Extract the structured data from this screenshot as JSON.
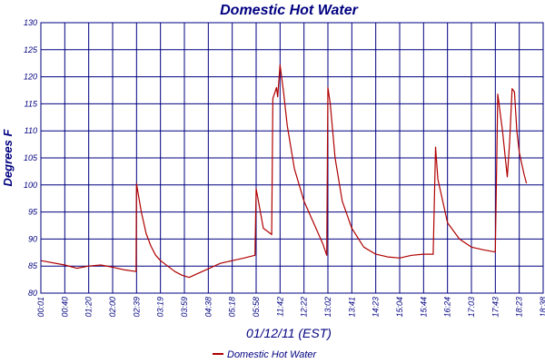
{
  "chart_data": {
    "type": "line",
    "title": "Domestic Hot Water",
    "xlabel": "01/12/11 (EST)",
    "ylabel": "Degrees F",
    "ylim": [
      80,
      130
    ],
    "yticks": [
      80,
      85,
      90,
      95,
      100,
      105,
      110,
      115,
      120,
      125,
      130
    ],
    "xticks": [
      "00:01",
      "00:40",
      "01:20",
      "02:00",
      "02:39",
      "03:19",
      "03:59",
      "04:38",
      "05:18",
      "05:58",
      "11:42",
      "12:22",
      "13:02",
      "13:41",
      "14:23",
      "15:04",
      "15:44",
      "16:24",
      "17:03",
      "17:43",
      "18:23",
      "18:38"
    ],
    "grid": true,
    "legend_position": "bottom",
    "series": [
      {
        "name": "Domestic Hot Water",
        "color": "#b00000",
        "points": [
          [
            0,
            86
          ],
          [
            1,
            85.2
          ],
          [
            1.5,
            84.6
          ],
          [
            2,
            85
          ],
          [
            2.5,
            85.2
          ],
          [
            3,
            84.8
          ],
          [
            3.5,
            84.3
          ],
          [
            3.98,
            84
          ],
          [
            4,
            100.2
          ],
          [
            4.2,
            95
          ],
          [
            4.4,
            91
          ],
          [
            4.6,
            88.7
          ],
          [
            4.8,
            87
          ],
          [
            5,
            86
          ],
          [
            5.3,
            85
          ],
          [
            5.6,
            84
          ],
          [
            5.9,
            83.3
          ],
          [
            6.2,
            82.9
          ],
          [
            6.5,
            83.5
          ],
          [
            7,
            84.5
          ],
          [
            7.5,
            85.5
          ],
          [
            8,
            86
          ],
          [
            8.5,
            86.5
          ],
          [
            8.95,
            87
          ],
          [
            9,
            99.3
          ],
          [
            9.3,
            92
          ],
          [
            9.6,
            91
          ],
          [
            9.65,
            90.8
          ],
          [
            9.7,
            116
          ],
          [
            9.85,
            118
          ],
          [
            9.9,
            116.3
          ],
          [
            10,
            122.2
          ],
          [
            10.15,
            117
          ],
          [
            10.3,
            111
          ],
          [
            10.6,
            103
          ],
          [
            11,
            97
          ],
          [
            11.4,
            93
          ],
          [
            11.8,
            89
          ],
          [
            11.95,
            87
          ],
          [
            12,
            118
          ],
          [
            12.1,
            115
          ],
          [
            12.3,
            105
          ],
          [
            12.6,
            97
          ],
          [
            13,
            92
          ],
          [
            13.5,
            88.5
          ],
          [
            14,
            87.2
          ],
          [
            14.5,
            86.7
          ],
          [
            15,
            86.5
          ],
          [
            15.5,
            87
          ],
          [
            16,
            87.2
          ],
          [
            16.4,
            87.2
          ],
          [
            16.5,
            107
          ],
          [
            16.6,
            101
          ],
          [
            17,
            93
          ],
          [
            17.5,
            90
          ],
          [
            18,
            88.5
          ],
          [
            18.5,
            88
          ],
          [
            19,
            87.6
          ],
          [
            19.1,
            116.8
          ],
          [
            19.3,
            110
          ],
          [
            19.5,
            101.5
          ],
          [
            19.6,
            108
          ],
          [
            19.7,
            117.8
          ],
          [
            19.8,
            117.2
          ],
          [
            19.9,
            110
          ],
          [
            20,
            106
          ],
          [
            20.2,
            102
          ],
          [
            20.3,
            100.3
          ]
        ]
      }
    ]
  }
}
